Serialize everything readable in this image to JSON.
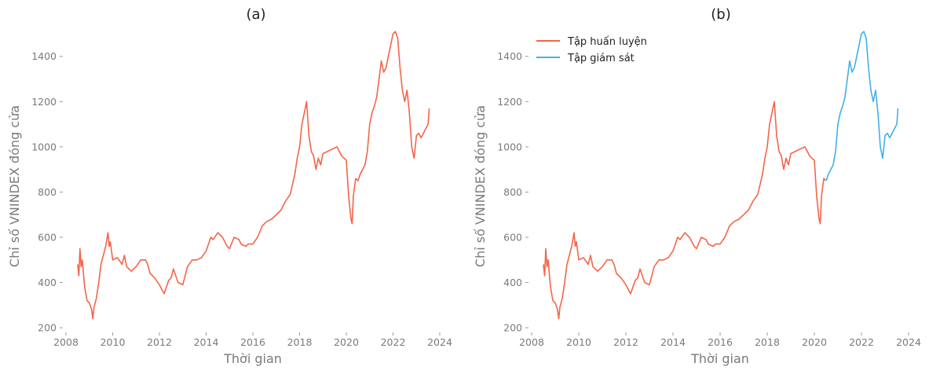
{
  "chart_data": [
    {
      "type": "line",
      "title": "(a)",
      "xlabel": "Thời gian",
      "ylabel": "Chỉ số VNINDEX đóng cửa",
      "xlim": [
        2008.0,
        2024.0
      ],
      "ylim": [
        190,
        1545
      ],
      "xticks": [
        2008,
        2010,
        2012,
        2014,
        2016,
        2018,
        2020,
        2022,
        2024
      ],
      "xtick_labels": [
        "2008",
        "2010",
        "2012",
        "2014",
        "2016",
        "2018",
        "2020",
        "2022",
        "2024"
      ],
      "yticks": [
        200,
        400,
        600,
        800,
        1000,
        1200,
        1400
      ],
      "ytick_labels": [
        "200",
        "400",
        "600",
        "800",
        "1000",
        "1200",
        "1400"
      ],
      "grid": false,
      "legend": null,
      "series": [
        {
          "color": "#f4654a",
          "x": [
            2008.5,
            2008.55,
            2008.6,
            2008.65,
            2008.7,
            2008.8,
            2008.9,
            2009.0,
            2009.1,
            2009.15,
            2009.2,
            2009.3,
            2009.4,
            2009.5,
            2009.6,
            2009.7,
            2009.8,
            2009.85,
            2009.9,
            2010.0,
            2010.2,
            2010.4,
            2010.5,
            2010.6,
            2010.8,
            2011.0,
            2011.2,
            2011.4,
            2011.5,
            2011.6,
            2011.8,
            2012.0,
            2012.1,
            2012.2,
            2012.3,
            2012.4,
            2012.5,
            2012.6,
            2012.8,
            2013.0,
            2013.2,
            2013.4,
            2013.6,
            2013.8,
            2014.0,
            2014.1,
            2014.2,
            2014.3,
            2014.5,
            2014.7,
            2014.9,
            2015.0,
            2015.2,
            2015.4,
            2015.5,
            2015.7,
            2015.8,
            2016.0,
            2016.2,
            2016.4,
            2016.6,
            2016.8,
            2017.0,
            2017.2,
            2017.4,
            2017.6,
            2017.8,
            2017.9,
            2018.0,
            2018.1,
            2018.2,
            2018.3,
            2018.4,
            2018.5,
            2018.6,
            2018.7,
            2018.8,
            2018.9,
            2019.0,
            2019.2,
            2019.4,
            2019.6,
            2019.8,
            2020.0,
            2020.1,
            2020.2,
            2020.25,
            2020.3,
            2020.4,
            2020.5,
            2020.6,
            2020.7,
            2020.8,
            2020.9,
            2021.0,
            2021.1,
            2021.2,
            2021.3,
            2021.4,
            2021.5,
            2021.6,
            2021.7,
            2021.8,
            2021.9,
            2022.0,
            2022.1,
            2022.2,
            2022.3,
            2022.4,
            2022.5,
            2022.6,
            2022.7,
            2022.8,
            2022.9,
            2023.0,
            2023.1,
            2023.2,
            2023.3,
            2023.4,
            2023.5,
            2023.55
          ],
          "y": [
            480,
            430,
            550,
            470,
            500,
            380,
            320,
            310,
            280,
            240,
            290,
            330,
            400,
            480,
            520,
            560,
            620,
            560,
            580,
            500,
            510,
            480,
            520,
            470,
            450,
            470,
            500,
            500,
            480,
            440,
            420,
            390,
            370,
            350,
            380,
            410,
            420,
            460,
            400,
            390,
            470,
            500,
            500,
            510,
            540,
            570,
            600,
            590,
            620,
            600,
            560,
            550,
            600,
            590,
            570,
            560,
            570,
            570,
            600,
            650,
            670,
            680,
            700,
            720,
            760,
            790,
            880,
            950,
            1000,
            1100,
            1150,
            1200,
            1050,
            980,
            960,
            900,
            950,
            920,
            970,
            980,
            990,
            1000,
            960,
            940,
            780,
            680,
            660,
            780,
            860,
            850,
            880,
            900,
            920,
            980,
            1100,
            1150,
            1180,
            1220,
            1300,
            1380,
            1330,
            1350,
            1400,
            1450,
            1500,
            1510,
            1480,
            1350,
            1250,
            1200,
            1250,
            1150,
            1000,
            950,
            1050,
            1060,
            1040,
            1060,
            1080,
            1100,
            1170
          ]
        }
      ]
    },
    {
      "type": "line",
      "title": "(b)",
      "xlabel": "Thời gian",
      "ylabel": "Chỉ số VNINDEX đóng cửa",
      "xlim": [
        2008.0,
        2024.0
      ],
      "ylim": [
        190,
        1545
      ],
      "xticks": [
        2008,
        2010,
        2012,
        2014,
        2016,
        2018,
        2020,
        2022,
        2024
      ],
      "xtick_labels": [
        "2008",
        "2010",
        "2012",
        "2014",
        "2016",
        "2018",
        "2020",
        "2022",
        "2024"
      ],
      "yticks": [
        200,
        400,
        600,
        800,
        1000,
        1200,
        1400
      ],
      "ytick_labels": [
        "200",
        "400",
        "600",
        "800",
        "1000",
        "1200",
        "1400"
      ],
      "grid": false,
      "legend": "top-left",
      "series": [
        {
          "name": "Tập huấn luyện",
          "color": "#f4654a",
          "x": [
            2008.5,
            2008.55,
            2008.6,
            2008.65,
            2008.7,
            2008.8,
            2008.9,
            2009.0,
            2009.1,
            2009.15,
            2009.2,
            2009.3,
            2009.4,
            2009.5,
            2009.6,
            2009.7,
            2009.8,
            2009.85,
            2009.9,
            2010.0,
            2010.2,
            2010.4,
            2010.5,
            2010.6,
            2010.8,
            2011.0,
            2011.2,
            2011.4,
            2011.5,
            2011.6,
            2011.8,
            2012.0,
            2012.1,
            2012.2,
            2012.3,
            2012.4,
            2012.5,
            2012.6,
            2012.8,
            2013.0,
            2013.2,
            2013.4,
            2013.6,
            2013.8,
            2014.0,
            2014.1,
            2014.2,
            2014.3,
            2014.5,
            2014.7,
            2014.9,
            2015.0,
            2015.2,
            2015.4,
            2015.5,
            2015.7,
            2015.8,
            2016.0,
            2016.2,
            2016.4,
            2016.6,
            2016.8,
            2017.0,
            2017.2,
            2017.4,
            2017.6,
            2017.8,
            2017.9,
            2018.0,
            2018.1,
            2018.2,
            2018.3,
            2018.4,
            2018.5,
            2018.6,
            2018.7,
            2018.8,
            2018.9,
            2019.0,
            2019.2,
            2019.4,
            2019.6,
            2019.8,
            2020.0,
            2020.1,
            2020.2,
            2020.25,
            2020.3,
            2020.4,
            2020.5
          ],
          "y": [
            480,
            430,
            550,
            470,
            500,
            380,
            320,
            310,
            280,
            240,
            290,
            330,
            400,
            480,
            520,
            560,
            620,
            560,
            580,
            500,
            510,
            480,
            520,
            470,
            450,
            470,
            500,
            500,
            480,
            440,
            420,
            390,
            370,
            350,
            380,
            410,
            420,
            460,
            400,
            390,
            470,
            500,
            500,
            510,
            540,
            570,
            600,
            590,
            620,
            600,
            560,
            550,
            600,
            590,
            570,
            560,
            570,
            570,
            600,
            650,
            670,
            680,
            700,
            720,
            760,
            790,
            880,
            950,
            1000,
            1100,
            1150,
            1200,
            1050,
            980,
            960,
            900,
            950,
            920,
            970,
            980,
            990,
            1000,
            960,
            940,
            780,
            680,
            660,
            780,
            860,
            850
          ]
        },
        {
          "name": "Tập giám sát",
          "color": "#41b0e8",
          "x": [
            2020.5,
            2020.6,
            2020.7,
            2020.8,
            2020.9,
            2021.0,
            2021.1,
            2021.2,
            2021.3,
            2021.4,
            2021.5,
            2021.6,
            2021.7,
            2021.8,
            2021.9,
            2022.0,
            2022.1,
            2022.2,
            2022.3,
            2022.4,
            2022.5,
            2022.6,
            2022.7,
            2022.8,
            2022.9,
            2023.0,
            2023.1,
            2023.2,
            2023.3,
            2023.4,
            2023.5,
            2023.55
          ],
          "y": [
            850,
            880,
            900,
            920,
            980,
            1100,
            1150,
            1180,
            1220,
            1300,
            1380,
            1330,
            1350,
            1400,
            1450,
            1500,
            1510,
            1480,
            1350,
            1250,
            1200,
            1250,
            1150,
            1000,
            950,
            1050,
            1060,
            1040,
            1060,
            1080,
            1100,
            1170
          ]
        }
      ]
    }
  ]
}
